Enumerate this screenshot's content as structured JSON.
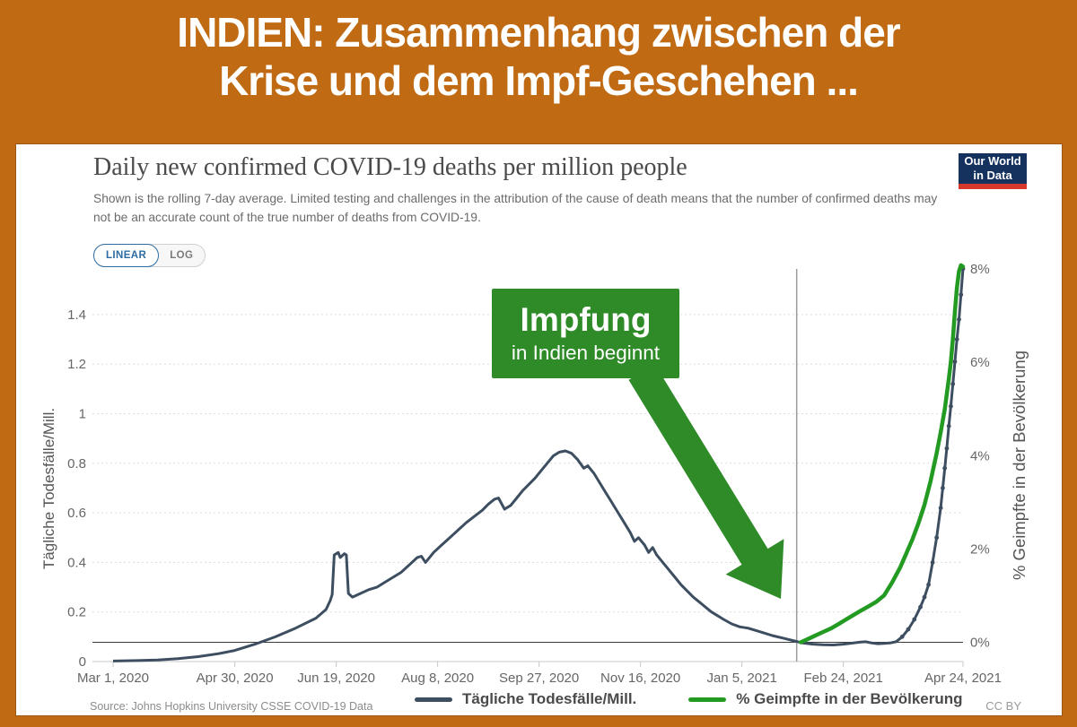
{
  "banner": {
    "line1": "INDIEN: Zusammenhang zwischen der",
    "line2": "Krise und dem Impf-Geschehen ...",
    "bg_color": "#c06a13"
  },
  "chart": {
    "title": "Daily new confirmed COVID-19 deaths per million people",
    "subtitle": "Shown is the rolling 7-day average. Limited testing and challenges in the attribution of the cause of death means that the number of confirmed deaths may not be an accurate count of the true number of deaths from COVID-19.",
    "scale_toggle": {
      "linear": "LINEAR",
      "log": "LOG",
      "active": "LINEAR"
    },
    "logo": {
      "line1": "Our World",
      "line2": "in Data",
      "bg": "#15325f",
      "stripe": "#d6392c"
    },
    "source": "Source: Johns Hopkins University CSSE COVID-19 Data",
    "license": "CC BY"
  },
  "annotation": {
    "title": "Impfung",
    "subtitle": "in Indien beginnt",
    "color": "#2e8b28"
  },
  "chart_data": {
    "type": "line",
    "title": "Daily new confirmed COVID-19 deaths per million people",
    "x_axis": {
      "unit": "days since Mar 1, 2020",
      "range": [
        0,
        419
      ],
      "ticks": [
        {
          "day": 0,
          "label": "Mar 1, 2020"
        },
        {
          "day": 60,
          "label": "Apr 30, 2020"
        },
        {
          "day": 110,
          "label": "Jun 19, 2020"
        },
        {
          "day": 160,
          "label": "Aug 8, 2020"
        },
        {
          "day": 210,
          "label": "Sep 27, 2020"
        },
        {
          "day": 260,
          "label": "Nov 16, 2020"
        },
        {
          "day": 310,
          "label": "Jan 5, 2021"
        },
        {
          "day": 360,
          "label": "Feb 24, 2021"
        },
        {
          "day": 419,
          "label": "Apr 24, 2021"
        }
      ]
    },
    "y_axis_left": {
      "label": "Tägliche Todesfälle/Mill.",
      "range": [
        0,
        1.6
      ],
      "grid": "dashed",
      "ticks": [
        {
          "v": 0,
          "label": "0"
        },
        {
          "v": 0.2,
          "label": "0.2"
        },
        {
          "v": 0.4,
          "label": "0.4"
        },
        {
          "v": 0.6,
          "label": "0.6"
        },
        {
          "v": 0.8,
          "label": "0.8"
        },
        {
          "v": 1,
          "label": "1"
        },
        {
          "v": 1.2,
          "label": "1.2"
        },
        {
          "v": 1.4,
          "label": "1.4"
        }
      ]
    },
    "y_axis_right": {
      "label": "% Geimpfte in der Bevölkerung",
      "range": [
        0,
        8
      ],
      "ticks": [
        {
          "v": 0,
          "label": "0%"
        },
        {
          "v": 2,
          "label": "2%"
        },
        {
          "v": 4,
          "label": "4%"
        },
        {
          "v": 6,
          "label": "6%"
        },
        {
          "v": 8,
          "label": "8%"
        }
      ]
    },
    "vaccination_start_line_day": 337,
    "legend_position": "bottom",
    "series": [
      {
        "name": "Tägliche Todesfälle/Mill.",
        "axis": "left",
        "color": "#3d4e60",
        "markers_from_day": 389,
        "points": [
          [
            0,
            0.002
          ],
          [
            12,
            0.004
          ],
          [
            22,
            0.006
          ],
          [
            32,
            0.012
          ],
          [
            42,
            0.02
          ],
          [
            52,
            0.032
          ],
          [
            60,
            0.045
          ],
          [
            70,
            0.07
          ],
          [
            80,
            0.1
          ],
          [
            90,
            0.135
          ],
          [
            100,
            0.175
          ],
          [
            105,
            0.21
          ],
          [
            107,
            0.245
          ],
          [
            108,
            0.27
          ],
          [
            109,
            0.43
          ],
          [
            111,
            0.44
          ],
          [
            112,
            0.42
          ],
          [
            114,
            0.435
          ],
          [
            115,
            0.43
          ],
          [
            116,
            0.275
          ],
          [
            118,
            0.26
          ],
          [
            122,
            0.275
          ],
          [
            126,
            0.29
          ],
          [
            130,
            0.3
          ],
          [
            134,
            0.32
          ],
          [
            138,
            0.34
          ],
          [
            142,
            0.36
          ],
          [
            146,
            0.39
          ],
          [
            150,
            0.42
          ],
          [
            152,
            0.425
          ],
          [
            154,
            0.4
          ],
          [
            156,
            0.42
          ],
          [
            158,
            0.44
          ],
          [
            162,
            0.47
          ],
          [
            166,
            0.5
          ],
          [
            170,
            0.53
          ],
          [
            174,
            0.56
          ],
          [
            178,
            0.585
          ],
          [
            182,
            0.61
          ],
          [
            185,
            0.635
          ],
          [
            188,
            0.655
          ],
          [
            190,
            0.66
          ],
          [
            193,
            0.615
          ],
          [
            196,
            0.63
          ],
          [
            199,
            0.66
          ],
          [
            202,
            0.69
          ],
          [
            205,
            0.715
          ],
          [
            208,
            0.74
          ],
          [
            211,
            0.77
          ],
          [
            214,
            0.8
          ],
          [
            217,
            0.83
          ],
          [
            220,
            0.845
          ],
          [
            223,
            0.85
          ],
          [
            226,
            0.84
          ],
          [
            229,
            0.815
          ],
          [
            232,
            0.78
          ],
          [
            234,
            0.79
          ],
          [
            237,
            0.76
          ],
          [
            240,
            0.72
          ],
          [
            243,
            0.68
          ],
          [
            246,
            0.64
          ],
          [
            249,
            0.6
          ],
          [
            252,
            0.56
          ],
          [
            255,
            0.52
          ],
          [
            257,
            0.485
          ],
          [
            259,
            0.5
          ],
          [
            262,
            0.47
          ],
          [
            264,
            0.44
          ],
          [
            266,
            0.46
          ],
          [
            268,
            0.43
          ],
          [
            271,
            0.4
          ],
          [
            274,
            0.37
          ],
          [
            277,
            0.34
          ],
          [
            280,
            0.31
          ],
          [
            283,
            0.285
          ],
          [
            286,
            0.26
          ],
          [
            289,
            0.24
          ],
          [
            292,
            0.22
          ],
          [
            295,
            0.2
          ],
          [
            298,
            0.185
          ],
          [
            301,
            0.17
          ],
          [
            305,
            0.152
          ],
          [
            309,
            0.14
          ],
          [
            313,
            0.135
          ],
          [
            317,
            0.125
          ],
          [
            321,
            0.115
          ],
          [
            325,
            0.105
          ],
          [
            330,
            0.095
          ],
          [
            335,
            0.085
          ],
          [
            340,
            0.075
          ],
          [
            345,
            0.07
          ],
          [
            350,
            0.068
          ],
          [
            355,
            0.067
          ],
          [
            360,
            0.07
          ],
          [
            365,
            0.075
          ],
          [
            368,
            0.078
          ],
          [
            371,
            0.08
          ],
          [
            374,
            0.075
          ],
          [
            377,
            0.072
          ],
          [
            380,
            0.073
          ],
          [
            383,
            0.075
          ],
          [
            386,
            0.08
          ],
          [
            389,
            0.1
          ],
          [
            392,
            0.13
          ],
          [
            395,
            0.17
          ],
          [
            398,
            0.22
          ],
          [
            400,
            0.26
          ],
          [
            402,
            0.31
          ],
          [
            404,
            0.4
          ],
          [
            406,
            0.5
          ],
          [
            408,
            0.62
          ],
          [
            409,
            0.7
          ],
          [
            410,
            0.78
          ],
          [
            411,
            0.86
          ],
          [
            412,
            0.95
          ],
          [
            413,
            1.03
          ],
          [
            414,
            1.12
          ],
          [
            415,
            1.21
          ],
          [
            416,
            1.3
          ],
          [
            417,
            1.38
          ],
          [
            418,
            1.48
          ],
          [
            419,
            1.585
          ]
        ]
      },
      {
        "name": "% Geimpfte in der Bevölkerung",
        "axis": "right",
        "color": "#239b23",
        "points": [
          [
            339,
            0
          ],
          [
            342,
            0.06
          ],
          [
            346,
            0.14
          ],
          [
            350,
            0.22
          ],
          [
            354,
            0.3
          ],
          [
            358,
            0.4
          ],
          [
            361,
            0.48
          ],
          [
            364,
            0.56
          ],
          [
            368,
            0.66
          ],
          [
            372,
            0.76
          ],
          [
            376,
            0.86
          ],
          [
            380,
            1.0
          ],
          [
            384,
            1.28
          ],
          [
            388,
            1.6
          ],
          [
            391,
            1.9
          ],
          [
            394,
            2.2
          ],
          [
            397,
            2.55
          ],
          [
            400,
            2.95
          ],
          [
            403,
            3.45
          ],
          [
            406,
            4.05
          ],
          [
            408,
            4.5
          ],
          [
            410,
            5.0
          ],
          [
            412,
            5.65
          ],
          [
            413,
            6.0
          ],
          [
            414,
            6.5
          ],
          [
            415,
            7.1
          ],
          [
            416,
            7.6
          ],
          [
            417,
            7.95
          ],
          [
            418,
            8.08
          ],
          [
            419,
            8.05
          ]
        ]
      }
    ]
  }
}
